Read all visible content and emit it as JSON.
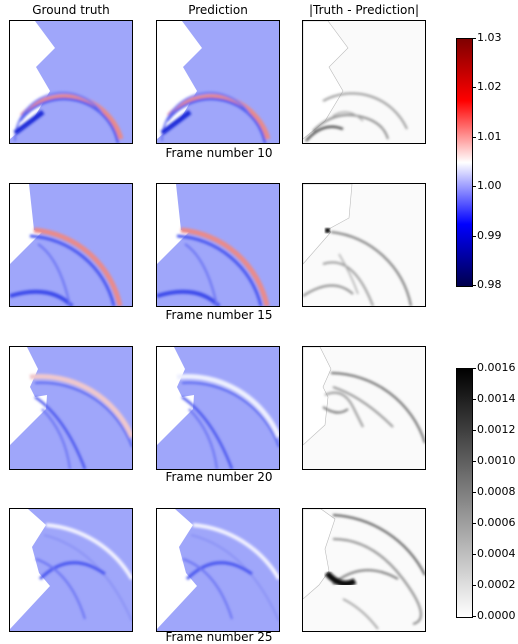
{
  "column_titles": {
    "ground_truth": "Ground truth",
    "prediction": "Prediction",
    "difference": "|Truth - Prediction|"
  },
  "frames": [
    {
      "label": "Frame number 10"
    },
    {
      "label": "Frame number 15"
    },
    {
      "label": "Frame number 20"
    },
    {
      "label": "Frame number 25"
    }
  ],
  "colorbars": {
    "field": {
      "colormap": "seismic",
      "ticks": [
        "1.03",
        "1.02",
        "1.01",
        "1.00",
        "0.99",
        "0.98"
      ],
      "colors": [
        "#8b0000",
        "#ff0000",
        "#ffffff",
        "#0000ff",
        "#00008b"
      ]
    },
    "error": {
      "colormap": "gray_r",
      "ticks": [
        "0.0016",
        "0.0014",
        "0.0012",
        "0.0010",
        "0.0008",
        "0.0006",
        "0.0004",
        "0.0002",
        "0.0000"
      ],
      "colors": [
        "#000000",
        "#ffffff"
      ]
    }
  },
  "field_background_color": "#9fa6fa"
}
